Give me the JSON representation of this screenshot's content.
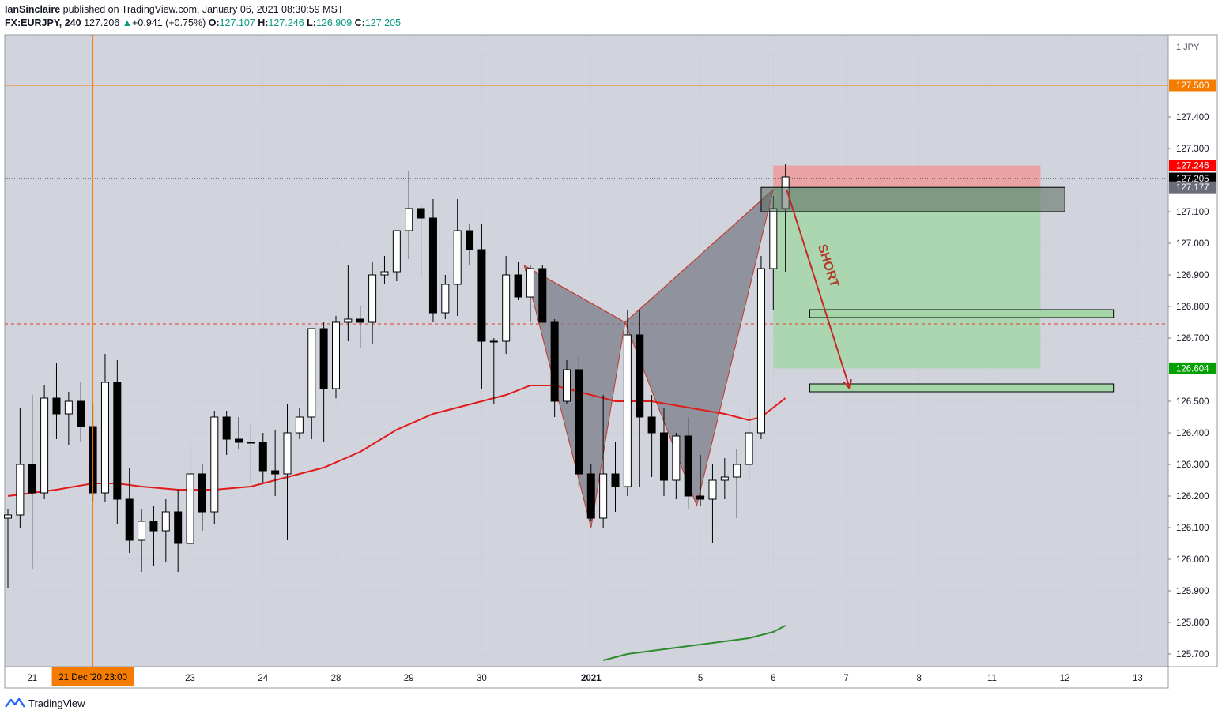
{
  "header": {
    "author": "IanSinclaire",
    "published_text": " published on TradingView.com, January 06, 2021 08:30:59 MST",
    "symbol_tf": "FX:EURJPY, 240",
    "last": "127.206",
    "change_arrow": "▲",
    "change": "+0.941 (+0.75%)",
    "o_label": "O:",
    "o_val": "127.107",
    "h_label": "H:",
    "h_val": "127.246",
    "l_label": "L:",
    "l_val": "126.909",
    "c_label": "C:",
    "c_val": "127.205"
  },
  "footer": {
    "logo_text": "TradingView"
  },
  "colors": {
    "bg": "#d1d4dc",
    "up_body": "#ffffff",
    "down_body": "#000000",
    "ma_red": "#e01b1b",
    "ma_green": "#2e8b2e",
    "pattern_fill": "#7a7d88",
    "pattern_stroke": "#c0392b",
    "target_zone": "#a5d6a7",
    "stop_zone": "#ef9a9a",
    "price_line": "#f57c00"
  },
  "chart_data": {
    "type": "candlestick",
    "currency_label": "1  JPY",
    "ylim": [
      125.66,
      127.66
    ],
    "price_ticks": [
      "127.400",
      "127.300",
      "127.100",
      "127.000",
      "126.900",
      "126.800",
      "126.700",
      "126.500",
      "126.400",
      "126.300",
      "126.200",
      "126.100",
      "126.000",
      "125.900",
      "125.800",
      "125.700"
    ],
    "x_ticks": [
      {
        "label": "21",
        "i": 2,
        "bold": false
      },
      {
        "label": "23",
        "i": 15,
        "bold": false
      },
      {
        "label": "24",
        "i": 21,
        "bold": false
      },
      {
        "label": "28",
        "i": 27,
        "bold": false
      },
      {
        "label": "29",
        "i": 33,
        "bold": false
      },
      {
        "label": "30",
        "i": 39,
        "bold": false
      },
      {
        "label": "2021",
        "i": 48,
        "bold": true
      },
      {
        "label": "5",
        "i": 57,
        "bold": false
      },
      {
        "label": "6",
        "i": 63,
        "bold": false
      },
      {
        "label": "7",
        "i": 69,
        "bold": false
      },
      {
        "label": "8",
        "i": 75,
        "bold": false
      },
      {
        "label": "11",
        "i": 81,
        "bold": false
      },
      {
        "label": "12",
        "i": 87,
        "bold": false
      },
      {
        "label": "13",
        "i": 93,
        "bold": false
      }
    ],
    "crosshair_date_label": "21 Dec '20   23:00",
    "crosshair_i": 7,
    "candles": [
      {
        "o": 126.13,
        "h": 126.16,
        "l": 125.91,
        "c": 126.14
      },
      {
        "o": 126.14,
        "h": 126.48,
        "l": 126.1,
        "c": 126.3
      },
      {
        "o": 126.3,
        "h": 126.52,
        "l": 125.97,
        "c": 126.21
      },
      {
        "o": 126.21,
        "h": 126.55,
        "l": 126.19,
        "c": 126.51
      },
      {
        "o": 126.51,
        "h": 126.62,
        "l": 126.38,
        "c": 126.46
      },
      {
        "o": 126.46,
        "h": 126.53,
        "l": 126.36,
        "c": 126.5
      },
      {
        "o": 126.5,
        "h": 126.56,
        "l": 126.37,
        "c": 126.42
      },
      {
        "o": 126.42,
        "h": 126.49,
        "l": 126.18,
        "c": 126.21
      },
      {
        "o": 126.21,
        "h": 126.65,
        "l": 126.18,
        "c": 126.56
      },
      {
        "o": 126.56,
        "h": 126.63,
        "l": 126.11,
        "c": 126.19
      },
      {
        "o": 126.19,
        "h": 126.29,
        "l": 126.02,
        "c": 126.06
      },
      {
        "o": 126.06,
        "h": 126.16,
        "l": 125.96,
        "c": 126.12
      },
      {
        "o": 126.12,
        "h": 126.17,
        "l": 125.98,
        "c": 126.09
      },
      {
        "o": 126.09,
        "h": 126.19,
        "l": 125.99,
        "c": 126.15
      },
      {
        "o": 126.15,
        "h": 126.22,
        "l": 125.96,
        "c": 126.05
      },
      {
        "o": 126.05,
        "h": 126.37,
        "l": 126.03,
        "c": 126.27
      },
      {
        "o": 126.27,
        "h": 126.3,
        "l": 126.09,
        "c": 126.15
      },
      {
        "o": 126.15,
        "h": 126.47,
        "l": 126.11,
        "c": 126.45
      },
      {
        "o": 126.45,
        "h": 126.47,
        "l": 126.33,
        "c": 126.38
      },
      {
        "o": 126.38,
        "h": 126.45,
        "l": 126.35,
        "c": 126.37
      },
      {
        "o": 126.37,
        "h": 126.43,
        "l": 126.24,
        "c": 126.37
      },
      {
        "o": 126.37,
        "h": 126.4,
        "l": 126.24,
        "c": 126.28
      },
      {
        "o": 126.28,
        "h": 126.41,
        "l": 126.2,
        "c": 126.27
      },
      {
        "o": 126.27,
        "h": 126.49,
        "l": 126.06,
        "c": 126.4
      },
      {
        "o": 126.4,
        "h": 126.48,
        "l": 126.38,
        "c": 126.45
      },
      {
        "o": 126.45,
        "h": 126.73,
        "l": 126.38,
        "c": 126.73
      },
      {
        "o": 126.73,
        "h": 126.75,
        "l": 126.37,
        "c": 126.54
      },
      {
        "o": 126.54,
        "h": 126.77,
        "l": 126.51,
        "c": 126.75
      },
      {
        "o": 126.75,
        "h": 126.93,
        "l": 126.69,
        "c": 126.76
      },
      {
        "o": 126.76,
        "h": 126.8,
        "l": 126.67,
        "c": 126.75
      },
      {
        "o": 126.75,
        "h": 126.94,
        "l": 126.68,
        "c": 126.9
      },
      {
        "o": 126.9,
        "h": 126.96,
        "l": 126.87,
        "c": 126.91
      },
      {
        "o": 126.91,
        "h": 127.03,
        "l": 126.88,
        "c": 127.04
      },
      {
        "o": 127.04,
        "h": 127.23,
        "l": 126.95,
        "c": 127.11
      },
      {
        "o": 127.11,
        "h": 127.12,
        "l": 126.89,
        "c": 127.08
      },
      {
        "o": 127.08,
        "h": 127.14,
        "l": 126.75,
        "c": 126.78
      },
      {
        "o": 126.78,
        "h": 126.9,
        "l": 126.76,
        "c": 126.87
      },
      {
        "o": 126.87,
        "h": 127.14,
        "l": 126.77,
        "c": 127.04
      },
      {
        "o": 127.04,
        "h": 127.06,
        "l": 126.93,
        "c": 126.98
      },
      {
        "o": 126.98,
        "h": 127.06,
        "l": 126.54,
        "c": 126.69
      },
      {
        "o": 126.69,
        "h": 126.7,
        "l": 126.49,
        "c": 126.69
      },
      {
        "o": 126.69,
        "h": 126.96,
        "l": 126.65,
        "c": 126.9
      },
      {
        "o": 126.9,
        "h": 126.94,
        "l": 126.82,
        "c": 126.83
      },
      {
        "o": 126.83,
        "h": 126.93,
        "l": 126.75,
        "c": 126.92
      },
      {
        "o": 126.92,
        "h": 126.93,
        "l": 126.75,
        "c": 126.75
      },
      {
        "o": 126.75,
        "h": 126.76,
        "l": 126.45,
        "c": 126.5
      },
      {
        "o": 126.5,
        "h": 126.63,
        "l": 126.49,
        "c": 126.6
      },
      {
        "o": 126.6,
        "h": 126.64,
        "l": 126.23,
        "c": 126.27
      },
      {
        "o": 126.27,
        "h": 126.3,
        "l": 126.12,
        "c": 126.13
      },
      {
        "o": 126.13,
        "h": 126.52,
        "l": 126.1,
        "c": 126.27
      },
      {
        "o": 126.27,
        "h": 126.37,
        "l": 126.15,
        "c": 126.23
      },
      {
        "o": 126.23,
        "h": 126.79,
        "l": 126.2,
        "c": 126.71
      },
      {
        "o": 126.71,
        "h": 126.79,
        "l": 126.23,
        "c": 126.45
      },
      {
        "o": 126.45,
        "h": 126.52,
        "l": 126.26,
        "c": 126.4
      },
      {
        "o": 126.4,
        "h": 126.48,
        "l": 126.2,
        "c": 126.25
      },
      {
        "o": 126.25,
        "h": 126.4,
        "l": 126.19,
        "c": 126.39
      },
      {
        "o": 126.39,
        "h": 126.45,
        "l": 126.16,
        "c": 126.2
      },
      {
        "o": 126.2,
        "h": 126.33,
        "l": 126.17,
        "c": 126.19
      },
      {
        "o": 126.19,
        "h": 126.3,
        "l": 126.05,
        "c": 126.25
      },
      {
        "o": 126.25,
        "h": 126.32,
        "l": 126.19,
        "c": 126.26
      },
      {
        "o": 126.26,
        "h": 126.35,
        "l": 126.13,
        "c": 126.3
      },
      {
        "o": 126.3,
        "h": 126.48,
        "l": 126.25,
        "c": 126.4
      },
      {
        "o": 126.4,
        "h": 126.96,
        "l": 126.38,
        "c": 126.92
      },
      {
        "o": 126.92,
        "h": 127.15,
        "l": 126.79,
        "c": 127.11
      },
      {
        "o": 127.11,
        "h": 127.25,
        "l": 126.91,
        "c": 127.21
      }
    ],
    "ema_red": [
      {
        "i": 0,
        "v": 126.2
      },
      {
        "i": 4,
        "v": 126.22
      },
      {
        "i": 7,
        "v": 126.24
      },
      {
        "i": 9,
        "v": 126.24
      },
      {
        "i": 11,
        "v": 126.23
      },
      {
        "i": 14,
        "v": 126.22
      },
      {
        "i": 17,
        "v": 126.22
      },
      {
        "i": 20,
        "v": 126.23
      },
      {
        "i": 23,
        "v": 126.26
      },
      {
        "i": 26,
        "v": 126.29
      },
      {
        "i": 29,
        "v": 126.34
      },
      {
        "i": 32,
        "v": 126.41
      },
      {
        "i": 35,
        "v": 126.46
      },
      {
        "i": 38,
        "v": 126.49
      },
      {
        "i": 41,
        "v": 126.52
      },
      {
        "i": 43,
        "v": 126.55
      },
      {
        "i": 45,
        "v": 126.55
      },
      {
        "i": 47,
        "v": 126.53
      },
      {
        "i": 50,
        "v": 126.5
      },
      {
        "i": 53,
        "v": 126.5
      },
      {
        "i": 56,
        "v": 126.48
      },
      {
        "i": 59,
        "v": 126.46
      },
      {
        "i": 61,
        "v": 126.44
      },
      {
        "i": 62,
        "v": 126.45
      },
      {
        "i": 64,
        "v": 126.51
      }
    ],
    "ema_green": [
      {
        "i": 49,
        "v": 125.68
      },
      {
        "i": 51,
        "v": 125.7
      },
      {
        "i": 53,
        "v": 125.71
      },
      {
        "i": 55,
        "v": 125.72
      },
      {
        "i": 57,
        "v": 125.73
      },
      {
        "i": 59,
        "v": 125.74
      },
      {
        "i": 61,
        "v": 125.75
      },
      {
        "i": 63,
        "v": 125.77
      },
      {
        "i": 64,
        "v": 125.79
      }
    ],
    "pattern_points": [
      {
        "i": 42.5,
        "v": 126.93
      },
      {
        "i": 48,
        "v": 126.1
      },
      {
        "i": 50.8,
        "v": 126.75
      },
      {
        "i": 56.7,
        "v": 126.17
      },
      {
        "i": 63,
        "v": 127.17
      }
    ],
    "horizontal_lines": {
      "solid_orange": 127.5,
      "dashed_red": 126.745,
      "dotted_current": 127.205
    },
    "stop_zone": {
      "i0": 63,
      "i1": 85,
      "top": 127.246,
      "bottom": 127.177
    },
    "target_zone": {
      "i0": 63,
      "i1": 85,
      "top": 127.177,
      "bottom": 126.604
    },
    "entry_box": {
      "i0": 62,
      "i1": 87,
      "top": 127.177,
      "bottom": 127.1
    },
    "target_boxes": [
      {
        "i0": 66,
        "i1": 91,
        "top": 126.79,
        "bottom": 126.77
      },
      {
        "i0": 66,
        "i1": 91,
        "top": 126.555,
        "bottom": 126.535
      }
    ],
    "arrow": {
      "from_i": 64.1,
      "from_v": 127.17,
      "to_i": 69.3,
      "to_v": 126.54
    },
    "annotation_text": "SHORT",
    "price_badges": [
      {
        "value": "127.500",
        "bg": "#f57c00",
        "fg": "#ffffff",
        "price": 127.5
      },
      {
        "value": "127.246",
        "bg": "#ff0000",
        "fg": "#ffffff",
        "price": 127.246
      },
      {
        "value": "127.205",
        "bg": "#000000",
        "fg": "#ffffff",
        "price": 127.205
      },
      {
        "value": "127.177",
        "bg": "#6b6e78",
        "fg": "#ffffff",
        "price": 127.177
      },
      {
        "value": "126.604",
        "bg": "#00a000",
        "fg": "#ffffff",
        "price": 126.604
      }
    ]
  }
}
